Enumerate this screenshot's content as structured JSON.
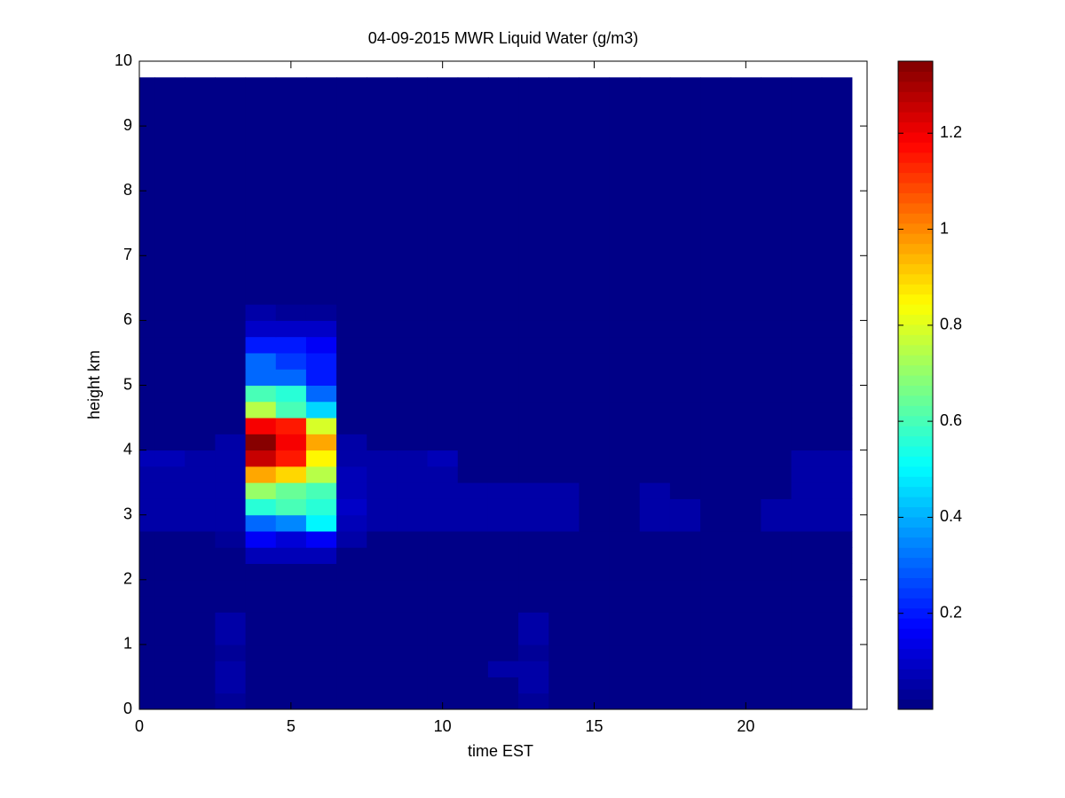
{
  "chart_data": {
    "type": "heatmap",
    "title": "04-09-2015 MWR Liquid Water (g/m3)",
    "x_label": "time EST",
    "y_label": "height km",
    "xlim": [
      0,
      24
    ],
    "xticks": [
      0,
      5,
      10,
      15,
      20
    ],
    "ylim": [
      0,
      10
    ],
    "yticks": [
      0,
      1,
      2,
      3,
      4,
      5,
      6,
      7,
      8,
      9,
      10
    ],
    "colormap": "jet",
    "clim": [
      0,
      1.35
    ],
    "cticks": [
      0.2,
      0.4,
      0.6,
      0.8,
      1,
      1.2
    ],
    "x_edges": [
      0,
      0.5,
      1.5,
      2.5,
      3.5,
      4.5,
      5.5,
      6.5,
      7.5,
      8.5,
      9.5,
      10.5,
      11.5,
      12.5,
      13.5,
      14.5,
      15.5,
      16.5,
      17.5,
      18.5,
      19.5,
      20.5,
      21.5,
      22.5,
      23.5
    ],
    "y_edges": [
      0,
      0.25,
      0.5,
      0.75,
      1,
      1.25,
      1.5,
      1.75,
      2,
      2.25,
      2.5,
      2.75,
      3,
      3.25,
      3.5,
      3.75,
      4,
      4.25,
      4.5,
      4.75,
      5,
      5.25,
      5.5,
      5.75,
      6,
      6.25,
      9.75
    ],
    "z": [
      [
        0.02,
        0.02,
        0.02,
        0.04,
        0.02,
        0.02,
        0.02,
        0.02,
        0.02,
        0.02,
        0.02,
        0.02,
        0.02,
        0.04,
        0.02,
        0.02,
        0.02,
        0.02,
        0.02,
        0.02,
        0.02,
        0.02,
        0.02,
        0.02
      ],
      [
        0.02,
        0.02,
        0.02,
        0.06,
        0.02,
        0.02,
        0.02,
        0.02,
        0.02,
        0.02,
        0.02,
        0.02,
        0.02,
        0.06,
        0.02,
        0.02,
        0.02,
        0.02,
        0.02,
        0.02,
        0.02,
        0.02,
        0.02,
        0.02
      ],
      [
        0.02,
        0.02,
        0.02,
        0.06,
        0.02,
        0.02,
        0.02,
        0.02,
        0.02,
        0.02,
        0.02,
        0.02,
        0.05,
        0.06,
        0.02,
        0.02,
        0.02,
        0.02,
        0.02,
        0.02,
        0.02,
        0.02,
        0.02,
        0.02
      ],
      [
        0.02,
        0.02,
        0.02,
        0.04,
        0.02,
        0.02,
        0.02,
        0.02,
        0.02,
        0.02,
        0.02,
        0.02,
        0.02,
        0.04,
        0.02,
        0.02,
        0.02,
        0.02,
        0.02,
        0.02,
        0.02,
        0.02,
        0.02,
        0.02
      ],
      [
        0.02,
        0.02,
        0.02,
        0.06,
        0.02,
        0.02,
        0.02,
        0.02,
        0.02,
        0.02,
        0.02,
        0.02,
        0.02,
        0.06,
        0.02,
        0.02,
        0.02,
        0.02,
        0.02,
        0.02,
        0.02,
        0.02,
        0.02,
        0.02
      ],
      [
        0.02,
        0.02,
        0.02,
        0.06,
        0.02,
        0.02,
        0.02,
        0.02,
        0.02,
        0.02,
        0.02,
        0.02,
        0.02,
        0.06,
        0.02,
        0.02,
        0.02,
        0.02,
        0.02,
        0.02,
        0.02,
        0.02,
        0.02,
        0.02
      ],
      [
        0.02,
        0.02,
        0.02,
        0.02,
        0.02,
        0.02,
        0.02,
        0.02,
        0.02,
        0.02,
        0.02,
        0.02,
        0.02,
        0.02,
        0.02,
        0.02,
        0.02,
        0.02,
        0.02,
        0.02,
        0.02,
        0.02,
        0.02,
        0.02
      ],
      [
        0.02,
        0.02,
        0.02,
        0.02,
        0.02,
        0.02,
        0.02,
        0.02,
        0.02,
        0.02,
        0.02,
        0.02,
        0.02,
        0.02,
        0.02,
        0.02,
        0.02,
        0.02,
        0.02,
        0.02,
        0.02,
        0.02,
        0.02,
        0.02
      ],
      [
        0.02,
        0.02,
        0.02,
        0.02,
        0.02,
        0.02,
        0.02,
        0.02,
        0.02,
        0.02,
        0.02,
        0.02,
        0.02,
        0.02,
        0.02,
        0.02,
        0.02,
        0.02,
        0.02,
        0.02,
        0.02,
        0.02,
        0.02,
        0.02
      ],
      [
        0.02,
        0.02,
        0.02,
        0.02,
        0.08,
        0.08,
        0.07,
        0.02,
        0.02,
        0.02,
        0.02,
        0.02,
        0.02,
        0.02,
        0.02,
        0.02,
        0.02,
        0.02,
        0.02,
        0.02,
        0.02,
        0.02,
        0.02,
        0.02
      ],
      [
        0.02,
        0.02,
        0.02,
        0.04,
        0.15,
        0.12,
        0.15,
        0.05,
        0.02,
        0.02,
        0.02,
        0.02,
        0.02,
        0.02,
        0.02,
        0.02,
        0.02,
        0.02,
        0.02,
        0.02,
        0.02,
        0.02,
        0.02,
        0.02
      ],
      [
        0.05,
        0.05,
        0.05,
        0.06,
        0.3,
        0.35,
        0.5,
        0.08,
        0.05,
        0.05,
        0.05,
        0.05,
        0.05,
        0.05,
        0.05,
        0.02,
        0.02,
        0.05,
        0.05,
        0.02,
        0.02,
        0.05,
        0.05,
        0.05
      ],
      [
        0.05,
        0.05,
        0.05,
        0.06,
        0.55,
        0.6,
        0.55,
        0.1,
        0.05,
        0.05,
        0.05,
        0.05,
        0.05,
        0.05,
        0.05,
        0.02,
        0.02,
        0.05,
        0.05,
        0.02,
        0.02,
        0.05,
        0.05,
        0.05
      ],
      [
        0.05,
        0.05,
        0.05,
        0.06,
        0.7,
        0.65,
        0.6,
        0.08,
        0.05,
        0.05,
        0.05,
        0.05,
        0.05,
        0.05,
        0.05,
        0.02,
        0.02,
        0.05,
        0.02,
        0.02,
        0.02,
        0.02,
        0.05,
        0.05
      ],
      [
        0.05,
        0.05,
        0.05,
        0.05,
        0.95,
        0.9,
        0.75,
        0.08,
        0.05,
        0.05,
        0.05,
        0.02,
        0.02,
        0.02,
        0.02,
        0.02,
        0.02,
        0.02,
        0.02,
        0.02,
        0.02,
        0.02,
        0.05,
        0.05
      ],
      [
        0.07,
        0.07,
        0.05,
        0.05,
        1.25,
        1.15,
        0.85,
        0.06,
        0.05,
        0.05,
        0.07,
        0.02,
        0.02,
        0.02,
        0.02,
        0.02,
        0.02,
        0.02,
        0.02,
        0.02,
        0.02,
        0.02,
        0.05,
        0.05
      ],
      [
        0.02,
        0.02,
        0.02,
        0.05,
        1.35,
        1.2,
        0.95,
        0.05,
        0.02,
        0.02,
        0.02,
        0.02,
        0.02,
        0.02,
        0.02,
        0.02,
        0.02,
        0.02,
        0.02,
        0.02,
        0.02,
        0.02,
        0.02,
        0.02
      ],
      [
        0.02,
        0.02,
        0.02,
        0.02,
        1.2,
        1.15,
        0.8,
        0.02,
        0.02,
        0.02,
        0.02,
        0.02,
        0.02,
        0.02,
        0.02,
        0.02,
        0.02,
        0.02,
        0.02,
        0.02,
        0.02,
        0.02,
        0.02,
        0.02
      ],
      [
        0.02,
        0.02,
        0.02,
        0.02,
        0.75,
        0.6,
        0.45,
        0.02,
        0.02,
        0.02,
        0.02,
        0.02,
        0.02,
        0.02,
        0.02,
        0.02,
        0.02,
        0.02,
        0.02,
        0.02,
        0.02,
        0.02,
        0.02,
        0.02
      ],
      [
        0.02,
        0.02,
        0.02,
        0.02,
        0.6,
        0.55,
        0.3,
        0.02,
        0.02,
        0.02,
        0.02,
        0.02,
        0.02,
        0.02,
        0.02,
        0.02,
        0.02,
        0.02,
        0.02,
        0.02,
        0.02,
        0.02,
        0.02,
        0.02
      ],
      [
        0.02,
        0.02,
        0.02,
        0.02,
        0.3,
        0.3,
        0.2,
        0.02,
        0.02,
        0.02,
        0.02,
        0.02,
        0.02,
        0.02,
        0.02,
        0.02,
        0.02,
        0.02,
        0.02,
        0.02,
        0.02,
        0.02,
        0.02,
        0.02
      ],
      [
        0.02,
        0.02,
        0.02,
        0.02,
        0.3,
        0.25,
        0.2,
        0.02,
        0.02,
        0.02,
        0.02,
        0.02,
        0.02,
        0.02,
        0.02,
        0.02,
        0.02,
        0.02,
        0.02,
        0.02,
        0.02,
        0.02,
        0.02,
        0.02
      ],
      [
        0.02,
        0.02,
        0.02,
        0.02,
        0.2,
        0.2,
        0.15,
        0.02,
        0.02,
        0.02,
        0.02,
        0.02,
        0.02,
        0.02,
        0.02,
        0.02,
        0.02,
        0.02,
        0.02,
        0.02,
        0.02,
        0.02,
        0.02,
        0.02
      ],
      [
        0.02,
        0.02,
        0.02,
        0.02,
        0.1,
        0.1,
        0.1,
        0.02,
        0.02,
        0.02,
        0.02,
        0.02,
        0.02,
        0.02,
        0.02,
        0.02,
        0.02,
        0.02,
        0.02,
        0.02,
        0.02,
        0.02,
        0.02,
        0.02
      ],
      [
        0.02,
        0.02,
        0.02,
        0.02,
        0.05,
        0.04,
        0.03,
        0.02,
        0.02,
        0.02,
        0.02,
        0.02,
        0.02,
        0.02,
        0.02,
        0.02,
        0.02,
        0.02,
        0.02,
        0.02,
        0.02,
        0.02,
        0.02,
        0.02
      ],
      [
        0.02,
        0.02,
        0.02,
        0.02,
        0.02,
        0.02,
        0.02,
        0.02,
        0.02,
        0.02,
        0.02,
        0.02,
        0.02,
        0.02,
        0.02,
        0.02,
        0.02,
        0.02,
        0.02,
        0.02,
        0.02,
        0.02,
        0.02,
        0.02
      ]
    ]
  }
}
